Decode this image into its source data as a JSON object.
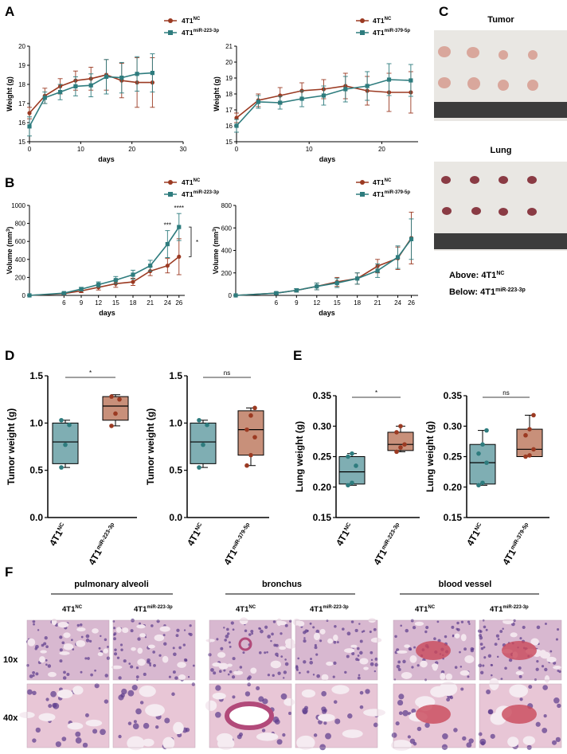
{
  "panels": {
    "A": "A",
    "B": "B",
    "C": "C",
    "D": "D",
    "E": "E",
    "F": "F"
  },
  "colors": {
    "nc": "#9B3A22",
    "mir": "#2E7C7E",
    "box_nc": "#7FAEB3",
    "box_mir": "#C8907A"
  },
  "legend": {
    "nc": {
      "base": "4T1",
      "sup": "NC"
    },
    "mir223": {
      "base": "4T1",
      "sup": "miR-223-3p"
    },
    "mir379": {
      "base": "4T1",
      "sup": "miR-379-5p"
    }
  },
  "chart_data": [
    {
      "id": "A1",
      "type": "line",
      "xlabel": "days",
      "ylabel": "Weight (g)",
      "xlim": [
        0,
        30
      ],
      "ylim": [
        15,
        20
      ],
      "xticks": [
        0,
        10,
        20,
        30
      ],
      "yticks": [
        15,
        16,
        17,
        18,
        19,
        20
      ],
      "series": [
        {
          "name": "4T1NC",
          "x": [
            0,
            3,
            6,
            9,
            12,
            15,
            18,
            21,
            24
          ],
          "y": [
            16.5,
            17.4,
            17.9,
            18.2,
            18.3,
            18.5,
            18.2,
            18.1,
            18.1
          ],
          "err": [
            0.3,
            0.4,
            0.4,
            0.5,
            0.6,
            0.8,
            0.9,
            1.3,
            1.3
          ]
        },
        {
          "name": "4T1miR-223-3p",
          "x": [
            0,
            3,
            6,
            9,
            12,
            15,
            18,
            21,
            24
          ],
          "y": [
            15.8,
            17.3,
            17.6,
            17.9,
            17.95,
            18.4,
            18.35,
            18.55,
            18.6
          ],
          "err": [
            0.5,
            0.3,
            0.4,
            0.5,
            0.6,
            0.9,
            0.8,
            0.9,
            1.0
          ]
        }
      ]
    },
    {
      "id": "A2",
      "type": "line",
      "xlabel": "days",
      "ylabel": "Weight (g)",
      "xlim": [
        0,
        25
      ],
      "ylim": [
        15,
        21
      ],
      "xticks": [
        0,
        10,
        20
      ],
      "yticks": [
        15,
        16,
        17,
        18,
        19,
        20,
        21
      ],
      "series": [
        {
          "name": "4T1NC",
          "x": [
            0,
            3,
            6,
            9,
            12,
            15,
            18,
            21,
            24
          ],
          "y": [
            16.5,
            17.6,
            17.9,
            18.2,
            18.3,
            18.5,
            18.2,
            18.1,
            18.1
          ],
          "err": [
            0.3,
            0.4,
            0.5,
            0.5,
            0.6,
            0.8,
            0.9,
            1.2,
            1.3
          ]
        },
        {
          "name": "4T1miR-379-5p",
          "x": [
            0,
            3,
            6,
            9,
            12,
            15,
            18,
            21,
            24
          ],
          "y": [
            16.0,
            17.5,
            17.45,
            17.7,
            17.9,
            18.3,
            18.5,
            18.9,
            18.85
          ],
          "err": [
            0.4,
            0.4,
            0.4,
            0.5,
            0.6,
            0.8,
            0.9,
            1.0,
            1.0
          ]
        }
      ]
    },
    {
      "id": "B1",
      "type": "line",
      "xlabel": "days",
      "ylabel": "Volume (mm³)",
      "xlim": [
        0,
        27
      ],
      "ylim": [
        0,
        1000
      ],
      "xticks": [
        6,
        9,
        12,
        15,
        18,
        21,
        24,
        26
      ],
      "yticks": [
        0,
        200,
        400,
        600,
        800,
        1000
      ],
      "annotations": [
        {
          "x": 24,
          "text": "***"
        },
        {
          "x": 26,
          "text": "****"
        },
        {
          "text": "*"
        }
      ],
      "series": [
        {
          "name": "4T1NC",
          "x": [
            0,
            6,
            9,
            12,
            15,
            18,
            21,
            24,
            26
          ],
          "y": [
            0,
            20,
            50,
            90,
            130,
            150,
            270,
            330,
            430
          ],
          "err": [
            0,
            10,
            20,
            30,
            40,
            40,
            50,
            80,
            200
          ]
        },
        {
          "name": "4T1miR-223-3p",
          "x": [
            0,
            6,
            9,
            12,
            15,
            18,
            21,
            24,
            26
          ],
          "y": [
            0,
            25,
            70,
            120,
            170,
            230,
            330,
            570,
            760
          ],
          "err": [
            0,
            10,
            20,
            30,
            40,
            50,
            60,
            150,
            150
          ]
        }
      ]
    },
    {
      "id": "B2",
      "type": "line",
      "xlabel": "days",
      "ylabel": "Volume (mm³)",
      "xlim": [
        0,
        27
      ],
      "ylim": [
        0,
        800
      ],
      "xticks": [
        6,
        9,
        12,
        15,
        18,
        21,
        24,
        26
      ],
      "yticks": [
        0,
        200,
        400,
        600,
        800
      ],
      "series": [
        {
          "name": "4T1NC",
          "x": [
            0,
            6,
            9,
            12,
            15,
            18,
            21,
            24,
            26
          ],
          "y": [
            0,
            20,
            45,
            80,
            120,
            150,
            260,
            330,
            510
          ],
          "err": [
            0,
            10,
            15,
            30,
            40,
            50,
            60,
            100,
            230
          ]
        },
        {
          "name": "4T1miR-379-5p",
          "x": [
            0,
            6,
            9,
            12,
            15,
            18,
            21,
            24,
            26
          ],
          "y": [
            0,
            20,
            45,
            80,
            110,
            150,
            220,
            340,
            500
          ],
          "err": [
            0,
            10,
            15,
            30,
            40,
            50,
            60,
            100,
            180
          ]
        }
      ]
    },
    {
      "id": "D1",
      "type": "box",
      "ylabel": "Tumor weight (g)",
      "ylim": [
        0,
        1.5
      ],
      "yticks": [
        "0.0",
        "0.5",
        "1.0",
        "1.5"
      ],
      "sig": "*",
      "groups": [
        {
          "name": "4T1NC",
          "min": 0.53,
          "q1": 0.57,
          "median": 0.8,
          "q3": 1.0,
          "max": 1.03,
          "points": [
            0.53,
            0.77,
            0.98,
            1.03
          ]
        },
        {
          "name": "4T1miR-223-3p",
          "min": 0.97,
          "q1": 1.03,
          "median": 1.18,
          "q3": 1.28,
          "max": 1.3,
          "points": [
            0.97,
            1.1,
            1.25,
            1.28
          ]
        }
      ]
    },
    {
      "id": "D2",
      "type": "box",
      "ylabel": "Tumor weight (g)",
      "ylim": [
        0,
        1.5
      ],
      "yticks": [
        "0.0",
        "0.5",
        "1.0",
        "1.5"
      ],
      "sig": "ns",
      "groups": [
        {
          "name": "4T1NC",
          "min": 0.53,
          "q1": 0.57,
          "median": 0.8,
          "q3": 1.0,
          "max": 1.03,
          "points": [
            0.53,
            0.77,
            0.98,
            1.03
          ]
        },
        {
          "name": "4T1miR-379-5p",
          "min": 0.55,
          "q1": 0.66,
          "median": 0.93,
          "q3": 1.13,
          "max": 1.16,
          "points": [
            0.55,
            0.66,
            0.85,
            0.93,
            1.08,
            1.16
          ]
        }
      ]
    },
    {
      "id": "E1",
      "type": "box",
      "ylabel": "Lung weight (g)",
      "ylim": [
        0.15,
        0.35
      ],
      "yticks": [
        "0.15",
        "0.20",
        "0.25",
        "0.30",
        "0.35"
      ],
      "sig": "*",
      "groups": [
        {
          "name": "4T1NC",
          "min": 0.203,
          "q1": 0.205,
          "median": 0.225,
          "q3": 0.25,
          "max": 0.255,
          "points": [
            0.203,
            0.207,
            0.235,
            0.25,
            0.255
          ]
        },
        {
          "name": "4T1miR-223-3p",
          "min": 0.258,
          "q1": 0.26,
          "median": 0.27,
          "q3": 0.29,
          "max": 0.3,
          "points": [
            0.258,
            0.265,
            0.27,
            0.29,
            0.3
          ]
        }
      ]
    },
    {
      "id": "E2",
      "type": "box",
      "ylabel": "Lung weight (g)",
      "ylim": [
        0.15,
        0.35
      ],
      "yticks": [
        "0.15",
        "0.20",
        "0.25",
        "0.30",
        "0.35"
      ],
      "sig": "ns",
      "groups": [
        {
          "name": "4T1NC",
          "min": 0.203,
          "q1": 0.205,
          "median": 0.24,
          "q3": 0.27,
          "max": 0.293,
          "points": [
            0.203,
            0.207,
            0.24,
            0.255,
            0.27,
            0.293
          ]
        },
        {
          "name": "4T1miR-379-5p",
          "min": 0.25,
          "q1": 0.25,
          "median": 0.262,
          "q3": 0.295,
          "max": 0.318,
          "points": [
            0.25,
            0.252,
            0.262,
            0.285,
            0.295,
            0.318
          ]
        }
      ]
    }
  ],
  "photos": {
    "tumor_title": "Tumor",
    "lung_title": "Lung",
    "caption_above": {
      "prefix": "Above: ",
      "base": "4T1",
      "sup": "NC"
    },
    "caption_below": {
      "prefix": "Below: ",
      "base": "4T1",
      "sup": "miR-223-3p"
    }
  },
  "histology": {
    "groups": [
      "pulmonary alveoli",
      "bronchus",
      "blood vessel"
    ],
    "rows": [
      "10x",
      "40x"
    ],
    "cols": [
      {
        "base": "4T1",
        "sup": "NC"
      },
      {
        "base": "4T1",
        "sup": "miR-223-3p"
      }
    ]
  }
}
